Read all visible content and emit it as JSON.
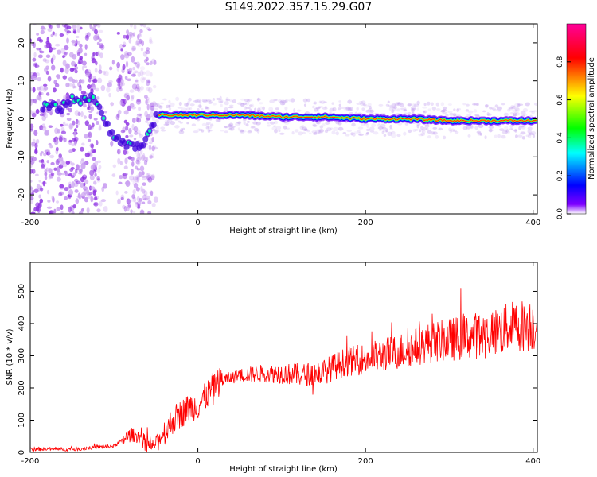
{
  "title": "S149.2022.357.15.29.G07",
  "chart_data": [
    {
      "type": "heatmap",
      "title": "",
      "xlabel": "Height of straight line (km)",
      "ylabel": "Frequency (Hz)",
      "xlim": [
        -200,
        405
      ],
      "ylim": [
        -25,
        25
      ],
      "xticks": [
        -200,
        0,
        200,
        400
      ],
      "yticks": [
        -20,
        -10,
        0,
        10,
        20
      ],
      "colorbar": {
        "label": "Normalized spectral amplitude",
        "range": [
          0,
          1
        ],
        "ticks": [
          "0.0",
          "0.2",
          "0.4",
          "0.6",
          "0.8"
        ],
        "colors": [
          "#ffffff",
          "#7f00ff",
          "#0000ff",
          "#00ffff",
          "#00ff00",
          "#ffff00",
          "#ff0000",
          "#ff0099"
        ]
      },
      "ridge": {
        "x": [
          -180,
          -175,
          -165,
          -155,
          -140,
          -125,
          -115,
          -105,
          -95,
          -85,
          -75,
          -65,
          -58,
          -53,
          -48,
          -45,
          -40,
          -30,
          0,
          50,
          100,
          150,
          200,
          250,
          300,
          350,
          400
        ],
        "frequency": [
          3,
          4,
          2,
          5,
          5,
          6,
          1,
          -3,
          -5,
          -7,
          -7,
          -7,
          -4,
          -1,
          1,
          1,
          1,
          1,
          1,
          1,
          0.5,
          0.5,
          0,
          0,
          -0.5,
          -0.5,
          -0.5
        ]
      }
    },
    {
      "type": "line",
      "title": "",
      "xlabel": "Height of straight line (km)",
      "ylabel": "SNR (10 * v/v)",
      "xlim": [
        -200,
        405
      ],
      "ylim": [
        0,
        590
      ],
      "xticks": [
        -200,
        0,
        200,
        400
      ],
      "yticks": [
        0,
        100,
        200,
        300,
        400,
        500
      ],
      "series": [
        {
          "color": "#ff0000",
          "x": [
            -200,
            -150,
            -100,
            -80,
            -70,
            -55,
            -40,
            -30,
            -20,
            -10,
            0,
            10,
            20,
            30,
            50,
            75,
            100,
            125,
            150,
            175,
            200,
            225,
            250,
            275,
            300,
            325,
            350,
            375,
            405
          ],
          "values": [
            10,
            10,
            20,
            55,
            50,
            15,
            60,
            100,
            120,
            140,
            145,
            175,
            210,
            225,
            240,
            245,
            245,
            240,
            250,
            280,
            290,
            305,
            320,
            340,
            350,
            360,
            370,
            390,
            400
          ]
        }
      ]
    }
  ]
}
